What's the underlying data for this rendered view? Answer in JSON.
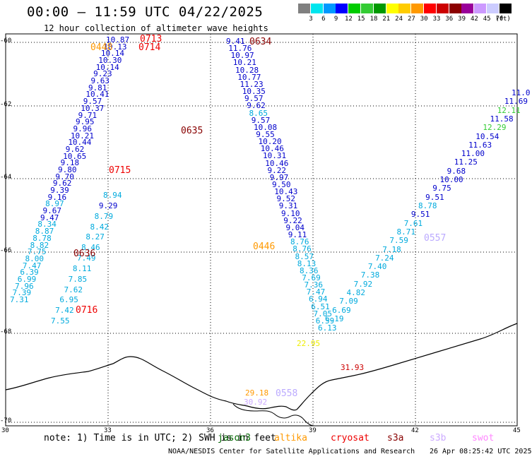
{
  "title": "00:00 – 11:59 UTC 04/22/2025",
  "subtitle": "12 hour collection of altimeter wave heights",
  "legend": {
    "unit": "(ft)",
    "colors": [
      "#808080",
      "#00e5ee",
      "#0099ff",
      "#0000ff",
      "#00cc00",
      "#33cc33",
      "#009900",
      "#ffff00",
      "#ffcc00",
      "#ff9900",
      "#ff0000",
      "#cc0000",
      "#8b0000",
      "#990099",
      "#cc99ff",
      "#ccccff",
      "#000000"
    ],
    "ticks": [
      "3",
      "6",
      "9",
      "12",
      "15",
      "18",
      "21",
      "24",
      "27",
      "30",
      "33",
      "36",
      "39",
      "42",
      "45",
      "70"
    ]
  },
  "axes": {
    "lat_labels": [
      "-60",
      "-62",
      "-64",
      "-66",
      "-68",
      "-70"
    ],
    "lon_labels": [
      "30",
      "33",
      "36",
      "39",
      "42",
      "45"
    ]
  },
  "annotations": [
    {
      "text": "0713",
      "color": "#ee0000"
    },
    {
      "text": "0714",
      "color": "#ee0000"
    },
    {
      "text": "0448",
      "color": "#ff9900"
    },
    {
      "text": "0634",
      "color": "#880000"
    },
    {
      "text": "0635",
      "color": "#880000"
    },
    {
      "text": "0715",
      "color": "#ee0000"
    },
    {
      "text": "0636",
      "color": "#880000"
    },
    {
      "text": "0716",
      "color": "#ee0000"
    },
    {
      "text": "0446",
      "color": "#ff9900"
    },
    {
      "text": "0557",
      "color": "#bbaaff"
    },
    {
      "text": "0558",
      "color": "#bbaaff"
    },
    {
      "text": "31.93",
      "color": "#cc0000"
    },
    {
      "text": "22.95",
      "color": "#eeee00"
    },
    {
      "text": "29.18",
      "color": "#ff9900"
    },
    {
      "text": "30.92",
      "color": "#ccaaff"
    }
  ],
  "track_values": {
    "track_a": [
      "10.87",
      "10.13",
      "10.14",
      "10.30",
      "10.14",
      "9.23",
      "9.63",
      "9.81",
      "10.41",
      "9.57",
      "10.37",
      "9.71",
      "9.95",
      "9.96",
      "10.21",
      "10.44",
      "9.62",
      "10.65",
      "9.18",
      "9.80",
      "9.70",
      "9.62",
      "9.39",
      "9.16",
      "8.97",
      "9.67",
      "9.47",
      "8.34",
      "8.87",
      "8.78",
      "8.82",
      "7.75",
      "8.00",
      "7.47",
      "6.39",
      "6.99",
      "7.96",
      "7.39",
      "7.31"
    ],
    "track_b": [
      "8.94",
      "9.29",
      "8.79",
      "8.42",
      "8.27",
      "8.46",
      "7.49",
      "8.11",
      "7.85",
      "7.62",
      "6.95",
      "7.42",
      "7.55"
    ],
    "track_c": [
      "9.41",
      "11.76",
      "10.97",
      "10.21",
      "10.28",
      "10.77",
      "11.23",
      "10.35",
      "9.57",
      "9.62",
      "8.65",
      "9.57",
      "10.08",
      "9.55",
      "10.20",
      "10.46",
      "10.31",
      "10.46",
      "9.22",
      "9.97",
      "9.50",
      "10.43",
      "9.52",
      "9.31",
      "9.10",
      "9.22",
      "9.04",
      "9.11",
      "8.76",
      "8.76",
      "8.57",
      "8.13",
      "8.36",
      "7.69",
      "7.36",
      "7.47",
      "6.94",
      "6.51",
      "7.05",
      "6.59",
      "6.13"
    ],
    "track_d": [
      "6.19",
      "6.69",
      "7.09",
      "4.82",
      "7.92",
      "7.38",
      "7.40",
      "7.24",
      "7.18",
      "7.59",
      "8.71",
      "7.61",
      "9.51",
      "8.78",
      "9.51",
      "9.75",
      "10.00",
      "9.68",
      "11.25",
      "11.00",
      "11.63",
      "10.54",
      "12.29",
      "11.58",
      "12.11",
      "11.69",
      "11.0"
    ]
  },
  "note": "note: 1) Time is in UTC; 2) SWH is in feet",
  "satellites": [
    {
      "name": "jason3",
      "color": "#006600"
    },
    {
      "name": "altika",
      "color": "#ff9900"
    },
    {
      "name": "cryosat",
      "color": "#ee0000"
    },
    {
      "name": "s3a",
      "color": "#880000"
    },
    {
      "name": "s3b",
      "color": "#ccaaff"
    },
    {
      "name": "swot",
      "color": "#ff88ff"
    }
  ],
  "footer": "NOAA/NESDIS Center for Satellite Applications and Research",
  "footer_date": "26 Apr 08:25:42 UTC 2025"
}
